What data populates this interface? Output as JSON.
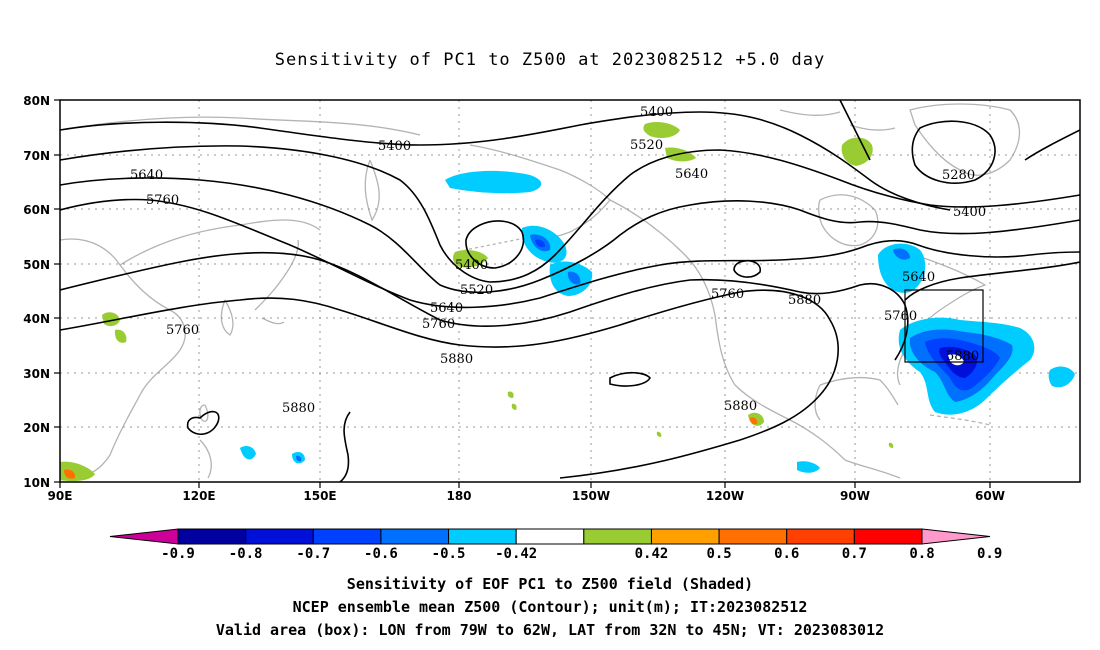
{
  "title": "Sensitivity of PC1 to Z500 at 2023082512 +5.0 day",
  "map": {
    "lon_range": [
      90,
      310
    ],
    "lat_range": [
      10,
      80
    ],
    "lat_ticks": [
      "80N",
      "70N",
      "60N",
      "50N",
      "40N",
      "30N",
      "20N",
      "10N"
    ],
    "lon_ticks": [
      "90E",
      "120E",
      "150E",
      "180",
      "150W",
      "120W",
      "90W",
      "60W"
    ],
    "contour_interval_m": 120,
    "contour_labels": [
      "5400",
      "5520",
      "5640",
      "5760",
      "5400",
      "5280",
      "5400",
      "5640",
      "5760",
      "5880",
      "5400",
      "5520",
      "5640",
      "5760",
      "5880",
      "5760",
      "5880",
      "5880",
      "5640",
      "5760",
      "5880",
      "5760",
      "5880"
    ],
    "valid_box": {
      "lon": [
        281,
        298
      ],
      "lat": [
        32,
        45
      ]
    }
  },
  "colorbar": {
    "labels": [
      "-0.9",
      "-0.8",
      "-0.7",
      "-0.6",
      "-0.5",
      "-0.42",
      "0.42",
      "0.5",
      "0.6",
      "0.7",
      "0.8",
      "0.9"
    ],
    "colors": [
      "#cc0099",
      "#0000a0",
      "#0010d8",
      "#0040ff",
      "#0070ff",
      "#00ccff",
      "#ffffff",
      "#99cc33",
      "#ffa000",
      "#ff7000",
      "#ff4000",
      "#ff0000",
      "#ff99cc"
    ]
  },
  "captions": {
    "line1": "Sensitivity of EOF PC1 to Z500 field (Shaded)",
    "line2": "NCEP ensemble mean Z500 (Contour); unit(m); IT:2023082512",
    "line3": "Valid area (box): LON from 79W to 62W, LAT from 32N to 45N; VT: 2023083012"
  }
}
